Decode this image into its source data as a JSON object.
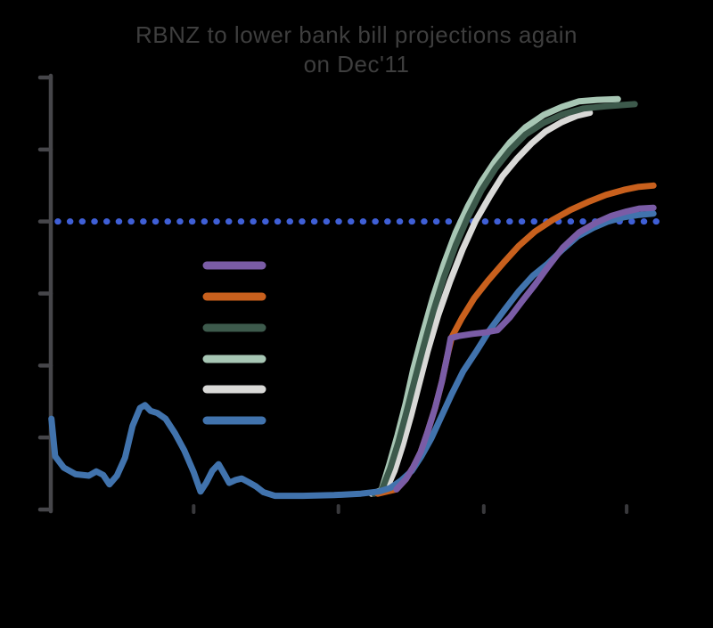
{
  "title": {
    "line1": "RBNZ to lower bank bill projections again",
    "line2": "on Dec'11"
  },
  "colors": {
    "background": "#000000",
    "axis": "#46464a",
    "x_tick": "#39393c",
    "title_text": "#3e3e3e",
    "reference_dots": "#3f5fd6",
    "purple": "#7a5ca6",
    "orange": "#c8601d",
    "dark_green": "#3d5a4c",
    "light_green": "#a7c6b4",
    "white_line": "#d9d9d7",
    "steel_blue": "#4173ad"
  },
  "legend": {
    "items": [
      {
        "name": "purple",
        "color": "#7a5ca6",
        "label": ""
      },
      {
        "name": "orange",
        "color": "#c8601d",
        "label": ""
      },
      {
        "name": "dark-green",
        "color": "#3d5a4c",
        "label": ""
      },
      {
        "name": "light-green",
        "color": "#a7c6b4",
        "label": ""
      },
      {
        "name": "white",
        "color": "#d9d9d7",
        "label": ""
      },
      {
        "name": "blue",
        "color": "#4173ad",
        "label": ""
      }
    ]
  },
  "chart_data": {
    "type": "line",
    "title": "RBNZ to lower bank bill projections again on Dec'11",
    "xlabel": "",
    "ylabel": "",
    "grid": false,
    "legend_position": "center-left",
    "y_axis": {
      "min": 0,
      "max": 6,
      "tick_step": 1,
      "tick_values": [
        0,
        1,
        2,
        3,
        4,
        5,
        6
      ],
      "tick_labels_visible": false
    },
    "x_axis": {
      "tick_positions_pct": [
        22.9,
        46.1,
        69.4,
        92.3
      ],
      "tick_labels_visible": false
    },
    "reference_line": {
      "name": "dotted-reference",
      "style": "dotted",
      "color": "#3f5fd6",
      "y": 4.0,
      "x_start_pct": 1.1,
      "x_end_pct": 97.1
    },
    "series": [
      {
        "name": "projection-white",
        "color": "#d9d9d7",
        "width": 7,
        "points": [
          [
            51.4,
            0.22
          ],
          [
            53.6,
            0.25
          ],
          [
            55.1,
            0.54
          ],
          [
            56.4,
            0.89
          ],
          [
            57.7,
            1.29
          ],
          [
            59,
            1.73
          ],
          [
            60.4,
            2.2
          ],
          [
            62.1,
            2.7
          ],
          [
            64,
            3.17
          ],
          [
            66,
            3.61
          ],
          [
            68.1,
            4.01
          ],
          [
            70.3,
            4.34
          ],
          [
            72.4,
            4.63
          ],
          [
            74.7,
            4.87
          ],
          [
            77,
            5.08
          ],
          [
            79.3,
            5.25
          ],
          [
            81.9,
            5.38
          ],
          [
            84.4,
            5.47
          ],
          [
            86.4,
            5.51
          ]
        ]
      },
      {
        "name": "projection-light-green",
        "color": "#a7c6b4",
        "width": 7,
        "points": [
          [
            51.8,
            0.23
          ],
          [
            53,
            0.27
          ],
          [
            54.3,
            0.64
          ],
          [
            55.6,
            1.04
          ],
          [
            56.9,
            1.48
          ],
          [
            58.1,
            1.95
          ],
          [
            59.6,
            2.44
          ],
          [
            61.3,
            2.96
          ],
          [
            63,
            3.41
          ],
          [
            64.9,
            3.85
          ],
          [
            66.9,
            4.22
          ],
          [
            69,
            4.55
          ],
          [
            71.3,
            4.85
          ],
          [
            73.6,
            5.1
          ],
          [
            76.1,
            5.31
          ],
          [
            79,
            5.48
          ],
          [
            81.9,
            5.59
          ],
          [
            84.7,
            5.67
          ],
          [
            87.6,
            5.69
          ],
          [
            90.9,
            5.7
          ]
        ]
      },
      {
        "name": "projection-dark-green",
        "color": "#3d5a4c",
        "width": 7,
        "points": [
          [
            51.8,
            0.22
          ],
          [
            53,
            0.26
          ],
          [
            54.4,
            0.57
          ],
          [
            55.7,
            0.93
          ],
          [
            57,
            1.35
          ],
          [
            58.3,
            1.79
          ],
          [
            59.7,
            2.25
          ],
          [
            61.3,
            2.75
          ],
          [
            63,
            3.22
          ],
          [
            64.9,
            3.67
          ],
          [
            66.9,
            4.07
          ],
          [
            69,
            4.43
          ],
          [
            71.3,
            4.74
          ],
          [
            73.6,
            4.99
          ],
          [
            76.1,
            5.21
          ],
          [
            79,
            5.37
          ],
          [
            82.1,
            5.49
          ],
          [
            85.4,
            5.57
          ],
          [
            89,
            5.6
          ],
          [
            91.9,
            5.62
          ],
          [
            93.6,
            5.63
          ]
        ]
      },
      {
        "name": "projection-orange",
        "color": "#c8601d",
        "width": 7,
        "points": [
          [
            52.4,
            0.22
          ],
          [
            55.4,
            0.28
          ],
          [
            56.9,
            0.42
          ],
          [
            58.1,
            0.59
          ],
          [
            59.3,
            0.8
          ],
          [
            60.4,
            1.08
          ],
          [
            61.6,
            1.41
          ],
          [
            62.7,
            1.78
          ],
          [
            63.6,
            2.15
          ],
          [
            64.3,
            2.4
          ],
          [
            65.9,
            2.66
          ],
          [
            67.9,
            2.94
          ],
          [
            70.1,
            3.18
          ],
          [
            72.6,
            3.43
          ],
          [
            75,
            3.66
          ],
          [
            77.6,
            3.86
          ],
          [
            80.4,
            4.02
          ],
          [
            83.3,
            4.16
          ],
          [
            86.1,
            4.27
          ],
          [
            89,
            4.37
          ],
          [
            91.9,
            4.44
          ],
          [
            94.1,
            4.48
          ],
          [
            96.6,
            4.5
          ]
        ]
      },
      {
        "name": "bank-bill-history",
        "color": "#4173ad",
        "width": 7,
        "points": [
          [
            0.1,
            1.26
          ],
          [
            0.7,
            0.74
          ],
          [
            2.1,
            0.58
          ],
          [
            4,
            0.49
          ],
          [
            6.1,
            0.47
          ],
          [
            7.3,
            0.53
          ],
          [
            8.4,
            0.48
          ],
          [
            9.4,
            0.35
          ],
          [
            10.6,
            0.47
          ],
          [
            11.9,
            0.72
          ],
          [
            13.1,
            1.16
          ],
          [
            14.3,
            1.41
          ],
          [
            15.1,
            1.45
          ],
          [
            16,
            1.37
          ],
          [
            17.1,
            1.34
          ],
          [
            18.4,
            1.26
          ],
          [
            19.9,
            1.06
          ],
          [
            21.4,
            0.82
          ],
          [
            22.9,
            0.52
          ],
          [
            24,
            0.25
          ],
          [
            24.9,
            0.37
          ],
          [
            25.9,
            0.54
          ],
          [
            26.9,
            0.63
          ],
          [
            27.7,
            0.51
          ],
          [
            28.6,
            0.37
          ],
          [
            29.6,
            0.41
          ],
          [
            30.6,
            0.43
          ],
          [
            31.7,
            0.38
          ],
          [
            32.9,
            0.32
          ],
          [
            34.1,
            0.24
          ],
          [
            35.9,
            0.19
          ],
          [
            40.4,
            0.19
          ],
          [
            45.4,
            0.2
          ],
          [
            49.7,
            0.22
          ],
          [
            52.6,
            0.25
          ],
          [
            54.4,
            0.3
          ],
          [
            56.1,
            0.4
          ],
          [
            57.9,
            0.54
          ],
          [
            59.4,
            0.74
          ],
          [
            61,
            0.99
          ],
          [
            62.6,
            1.29
          ],
          [
            64.3,
            1.61
          ],
          [
            66.1,
            1.92
          ],
          [
            68.3,
            2.21
          ],
          [
            70.4,
            2.5
          ],
          [
            72.7,
            2.77
          ],
          [
            75,
            3.03
          ],
          [
            77.3,
            3.25
          ],
          [
            79.6,
            3.41
          ],
          [
            81.9,
            3.6
          ],
          [
            84.4,
            3.79
          ],
          [
            86.9,
            3.91
          ],
          [
            89.3,
            4
          ],
          [
            91.9,
            4.06
          ],
          [
            94.1,
            4.09
          ],
          [
            96.6,
            4.11
          ]
        ]
      },
      {
        "name": "projection-purple",
        "color": "#7a5ca6",
        "width": 7,
        "points": [
          [
            55.4,
            0.28
          ],
          [
            56.9,
            0.42
          ],
          [
            58.1,
            0.59
          ],
          [
            59.3,
            0.8
          ],
          [
            60.4,
            1.08
          ],
          [
            61.6,
            1.41
          ],
          [
            62.7,
            1.78
          ],
          [
            63.6,
            2.15
          ],
          [
            64.1,
            2.38
          ],
          [
            65.4,
            2.41
          ],
          [
            67.6,
            2.44
          ],
          [
            69.7,
            2.46
          ],
          [
            71.6,
            2.49
          ],
          [
            73.6,
            2.67
          ],
          [
            75.6,
            2.9
          ],
          [
            77.6,
            3.12
          ],
          [
            79.7,
            3.37
          ],
          [
            82.1,
            3.64
          ],
          [
            84.7,
            3.85
          ],
          [
            87.3,
            3.98
          ],
          [
            89.9,
            4.08
          ],
          [
            92.3,
            4.14
          ],
          [
            94.4,
            4.18
          ],
          [
            96.6,
            4.19
          ]
        ]
      }
    ]
  }
}
